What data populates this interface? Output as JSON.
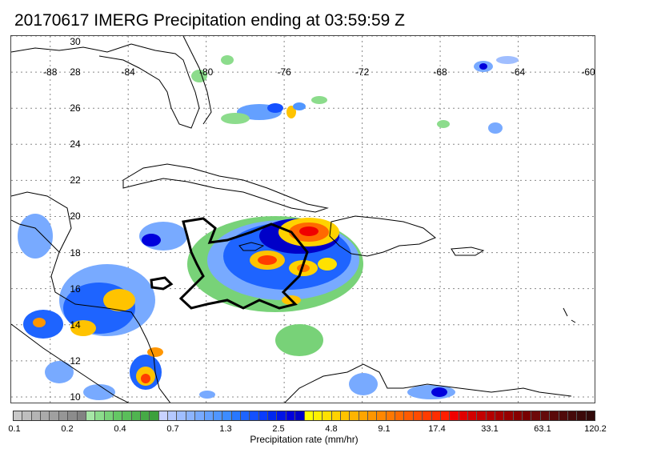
{
  "title": "20170617 IMERG Precipitation ending at 03:59:59 Z",
  "map": {
    "lat_labels": [
      "30",
      "28",
      "26",
      "24",
      "22",
      "20",
      "18",
      "16",
      "14",
      "12",
      "10"
    ],
    "lat_values": [
      30,
      28,
      26,
      24,
      22,
      20,
      18,
      16,
      14,
      12,
      10
    ],
    "lon_labels": [
      "-88",
      "-84",
      "-80",
      "-76",
      "-72",
      "-68",
      "-64",
      "-60"
    ],
    "lon_values": [
      -88,
      -84,
      -80,
      -76,
      -72,
      -68,
      -64,
      -60
    ],
    "extent": {
      "lon_min": -90,
      "lon_max": -60,
      "lat_min": 9.6,
      "lat_max": 30
    },
    "colors": {
      "coastline": "#000000",
      "outline": "#000000",
      "grid": "#888888"
    }
  },
  "colorbar": {
    "label": "Precipitation rate (mm/hr)",
    "ticks": [
      "0.1",
      "0.2",
      "0.4",
      "0.7",
      "1.3",
      "2.5",
      "4.8",
      "9.1",
      "17.4",
      "33.1",
      "63.1",
      "120.2"
    ],
    "colors": [
      "#c8c8c8",
      "#bebebe",
      "#b4b4b4",
      "#aaaaaa",
      "#a0a0a0",
      "#969696",
      "#8c8c8c",
      "#828282",
      "#a6e6a6",
      "#8cdc8c",
      "#78d278",
      "#64c864",
      "#5abe5a",
      "#50b450",
      "#46aa46",
      "#3ca03c",
      "#c8d2ff",
      "#b4c8ff",
      "#a0beff",
      "#8cb4ff",
      "#78aaff",
      "#64a0ff",
      "#5096ff",
      "#3c8cff",
      "#2878ff",
      "#1e64ff",
      "#1450ff",
      "#0a3cff",
      "#0028f0",
      "#0014e6",
      "#0000dc",
      "#0000c8",
      "#ffff00",
      "#fff000",
      "#ffe100",
      "#ffd200",
      "#ffc300",
      "#ffb400",
      "#ffa500",
      "#ff9600",
      "#ff8700",
      "#ff7800",
      "#ff6900",
      "#ff5a00",
      "#ff4b00",
      "#ff3c00",
      "#ff2d00",
      "#ff1e00",
      "#f00000",
      "#e10000",
      "#d20000",
      "#c30000",
      "#b40000",
      "#a50000",
      "#960000",
      "#870000",
      "#780000",
      "#6e0a0a",
      "#640a0a",
      "#5a0a0a",
      "#500a0a",
      "#460a0a",
      "#3c0a0a",
      "#320a0a"
    ]
  }
}
